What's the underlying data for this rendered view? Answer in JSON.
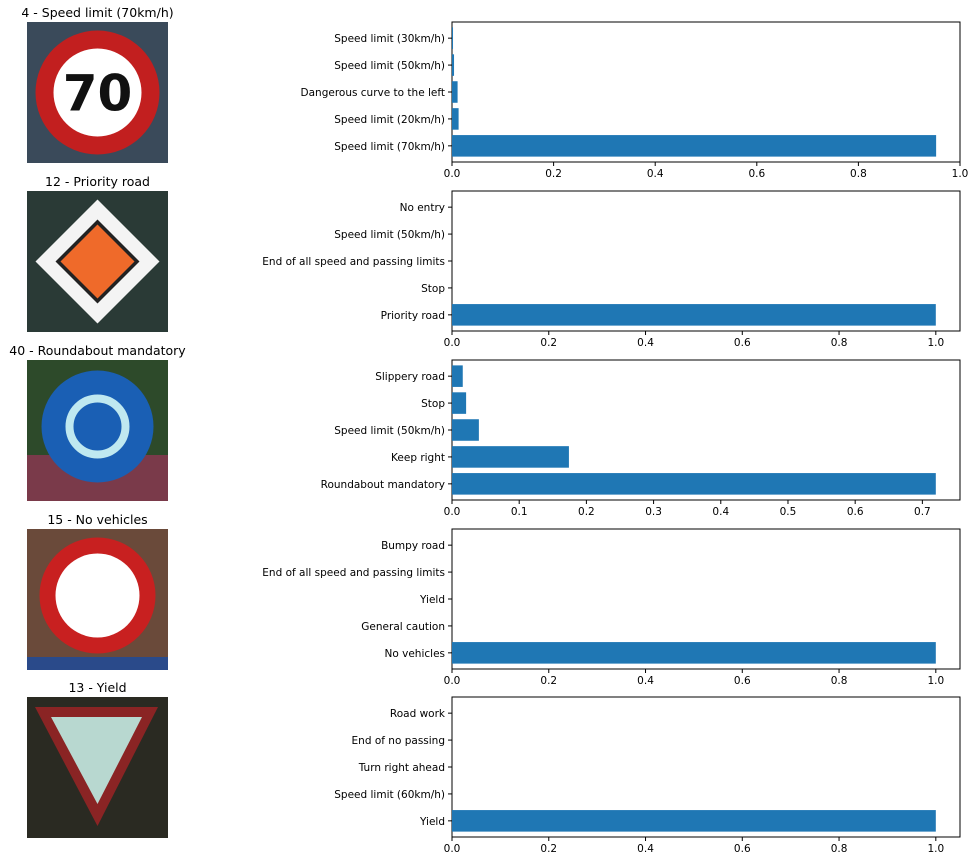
{
  "colors": {
    "bar": "#1f77b4",
    "axis": "#000000",
    "background": "#ffffff"
  },
  "chart_data": [
    {
      "type": "bar",
      "orientation": "horizontal",
      "title": "4 - Speed limit (70km/h)",
      "image_icon": "speed-limit-70-sign",
      "image_text": "70",
      "categories": [
        "Speed limit (70km/h)",
        "Speed limit (20km/h)",
        "Dangerous curve to the left",
        "Speed limit (50km/h)",
        "Speed limit (30km/h)"
      ],
      "values": [
        0.953,
        0.013,
        0.011,
        0.004,
        0.002
      ],
      "xticks": [
        "0.0",
        "0.2",
        "0.4",
        "0.6",
        "0.8",
        "1.0"
      ],
      "xlim": [
        0,
        1.0
      ]
    },
    {
      "type": "bar",
      "orientation": "horizontal",
      "title": "12 - Priority road",
      "image_icon": "priority-road-sign",
      "image_text": "",
      "categories": [
        "Priority road",
        "Stop",
        "End of all speed and passing limits",
        "Speed limit (50km/h)",
        "No entry"
      ],
      "values": [
        1.0,
        0.0,
        0.0,
        0.0,
        0.0
      ],
      "xticks": [
        "0.0",
        "0.2",
        "0.4",
        "0.6",
        "0.8",
        "1.0"
      ],
      "xlim": [
        0,
        1.05
      ]
    },
    {
      "type": "bar",
      "orientation": "horizontal",
      "title": "40 - Roundabout mandatory",
      "image_icon": "roundabout-mandatory-sign",
      "image_text": "",
      "categories": [
        "Roundabout mandatory",
        "Keep right",
        "Speed limit (50km/h)",
        "Stop",
        "Slippery road"
      ],
      "values": [
        0.72,
        0.174,
        0.04,
        0.021,
        0.016
      ],
      "xticks": [
        "0.0",
        "0.1",
        "0.2",
        "0.3",
        "0.4",
        "0.5",
        "0.6",
        "0.7"
      ],
      "xlim": [
        0,
        0.756
      ]
    },
    {
      "type": "bar",
      "orientation": "horizontal",
      "title": "15 - No vehicles",
      "image_icon": "no-vehicles-sign",
      "image_text": "",
      "categories": [
        "No vehicles",
        "General caution",
        "Yield",
        "End of all speed and passing limits",
        "Bumpy road"
      ],
      "values": [
        1.0,
        0.0,
        0.0,
        0.0,
        0.0
      ],
      "xticks": [
        "0.0",
        "0.2",
        "0.4",
        "0.6",
        "0.8",
        "1.0"
      ],
      "xlim": [
        0,
        1.05
      ]
    },
    {
      "type": "bar",
      "orientation": "horizontal",
      "title": "13 - Yield",
      "image_icon": "yield-sign",
      "image_text": "",
      "categories": [
        "Yield",
        "Speed limit (60km/h)",
        "Turn right ahead",
        "End of no passing",
        "Road work"
      ],
      "values": [
        1.0,
        0.0,
        0.0,
        0.0,
        0.0
      ],
      "xticks": [
        "0.0",
        "0.2",
        "0.4",
        "0.6",
        "0.8",
        "1.0"
      ],
      "xlim": [
        0,
        1.05
      ]
    }
  ]
}
